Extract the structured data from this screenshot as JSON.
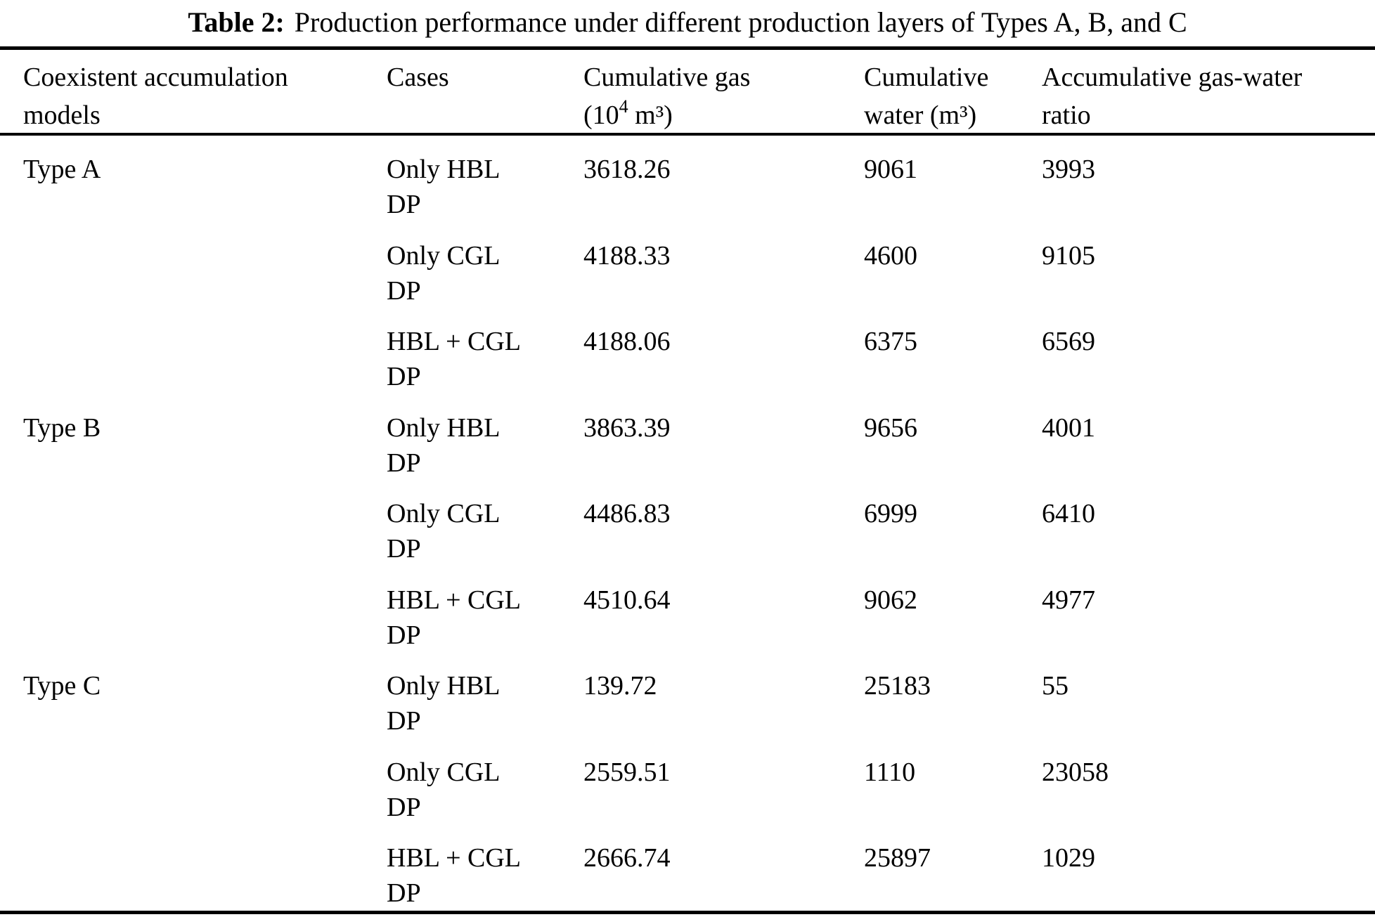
{
  "caption": {
    "label": "Table 2:",
    "text": "Production performance under different production layers of Types A, B, and C"
  },
  "table": {
    "headers": {
      "models": {
        "line1": "Coexistent accumulation",
        "line2": "models"
      },
      "cases": {
        "line1": "Cases"
      },
      "gas": {
        "line1": "Cumulative gas",
        "line2_p1": "(10",
        "line2_sup": "4",
        "line2_p2": " m³)"
      },
      "water": {
        "line1": "Cumulative",
        "line2": "water (m³)"
      },
      "ratio": {
        "line1": "Accumulative gas-water",
        "line2": "ratio"
      }
    },
    "rows": [
      {
        "model": "Type A",
        "case_line1": "Only HBL",
        "case_line2": "DP",
        "gas": "3618.26",
        "water": "9061",
        "ratio": "3993"
      },
      {
        "model": "",
        "case_line1": "Only CGL",
        "case_line2": "DP",
        "gas": "4188.33",
        "water": "4600",
        "ratio": "9105"
      },
      {
        "model": "",
        "case_line1": "HBL + CGL",
        "case_line2": "DP",
        "gas": "4188.06",
        "water": "6375",
        "ratio": "6569"
      },
      {
        "model": "Type B",
        "case_line1": "Only HBL",
        "case_line2": "DP",
        "gas": "3863.39",
        "water": "9656",
        "ratio": "4001"
      },
      {
        "model": "",
        "case_line1": "Only CGL",
        "case_line2": "DP",
        "gas": "4486.83",
        "water": "6999",
        "ratio": "6410"
      },
      {
        "model": "",
        "case_line1": "HBL + CGL",
        "case_line2": "DP",
        "gas": "4510.64",
        "water": "9062",
        "ratio": "4977"
      },
      {
        "model": "Type C",
        "case_line1": "Only HBL",
        "case_line2": "DP",
        "gas": "139.72",
        "water": "25183",
        "ratio": "55"
      },
      {
        "model": "",
        "case_line1": "Only CGL",
        "case_line2": "DP",
        "gas": "2559.51",
        "water": "1110",
        "ratio": "23058"
      },
      {
        "model": "",
        "case_line1": "HBL + CGL",
        "case_line2": "DP",
        "gas": "2666.74",
        "water": "25897",
        "ratio": "1029"
      }
    ]
  }
}
